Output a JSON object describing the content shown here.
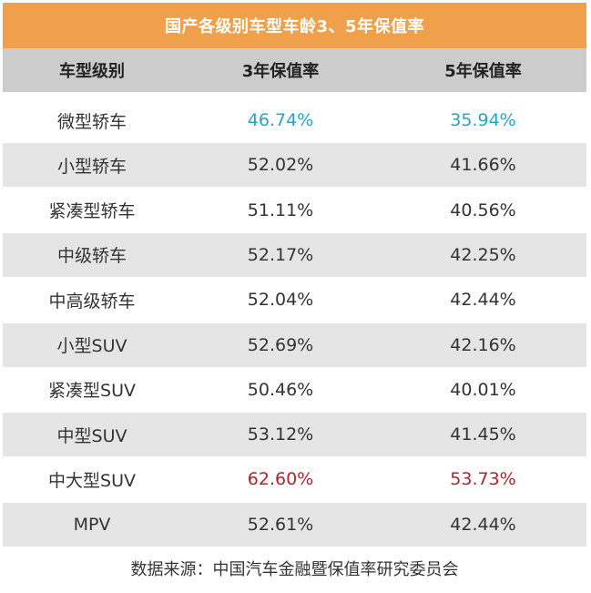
{
  "colors": {
    "title_bg": "#f0a04b",
    "header_bg": "#cccccc",
    "row_alt_bg": "#e5e5e5",
    "highlight_low": "#27a4c8",
    "highlight_high": "#b0242b"
  },
  "chart_data": {
    "type": "table",
    "title": "国产各级别车型车龄3、5年保值率",
    "columns": [
      "车型级别",
      "3年保值率",
      "5年保值率"
    ],
    "rows": [
      {
        "category": "微型轿车",
        "y3": "46.74%",
        "y5": "35.94%",
        "highlight": "low"
      },
      {
        "category": "小型轿车",
        "y3": "52.02%",
        "y5": "41.66%",
        "highlight": ""
      },
      {
        "category": "紧凑型轿车",
        "y3": "51.11%",
        "y5": "40.56%",
        "highlight": ""
      },
      {
        "category": "中级轿车",
        "y3": "52.17%",
        "y5": "42.25%",
        "highlight": ""
      },
      {
        "category": "中高级轿车",
        "y3": "52.04%",
        "y5": "42.44%",
        "highlight": ""
      },
      {
        "category": "小型SUV",
        "y3": "52.69%",
        "y5": "42.16%",
        "highlight": ""
      },
      {
        "category": "紧凑型SUV",
        "y3": "50.46%",
        "y5": "40.01%",
        "highlight": ""
      },
      {
        "category": "中型SUV",
        "y3": "53.12%",
        "y5": "41.45%",
        "highlight": ""
      },
      {
        "category": "中大型SUV",
        "y3": "62.60%",
        "y5": "53.73%",
        "highlight": "high"
      },
      {
        "category": "MPV",
        "y3": "52.61%",
        "y5": "42.44%",
        "highlight": ""
      }
    ],
    "source": "数据来源：中国汽车金融暨保值率研究委员会"
  }
}
